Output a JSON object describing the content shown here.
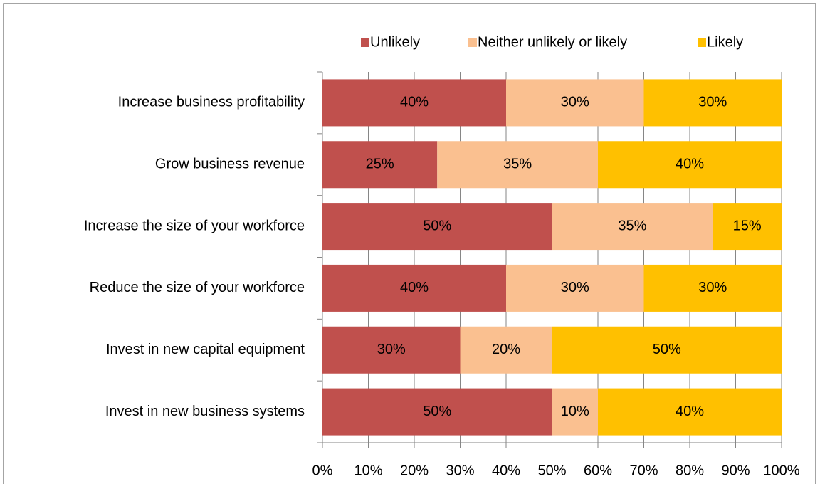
{
  "chart_data": {
    "type": "stacked_barh",
    "categories": [
      "Increase business profitability",
      "Grow business revenue",
      "Increase the size of your workforce",
      "Reduce the size of your workforce",
      "Invest in new capital equipment",
      "Invest in new business systems"
    ],
    "series": [
      {
        "name": "Unlikely",
        "color": "#c0504d",
        "values": [
          40,
          25,
          50,
          40,
          30,
          50
        ],
        "value_labels": [
          "40%",
          "25%",
          "50%",
          "40%",
          "30%",
          "50%"
        ]
      },
      {
        "name": "Neither unlikely or likely",
        "color": "#fac090",
        "values": [
          30,
          35,
          35,
          30,
          20,
          10
        ],
        "value_labels": [
          "30%",
          "35%",
          "35%",
          "30%",
          "20%",
          "10%"
        ]
      },
      {
        "name": "Likely",
        "color": "#ffc000",
        "values": [
          30,
          40,
          15,
          30,
          50,
          40
        ],
        "value_labels": [
          "30%",
          "40%",
          "15%",
          "30%",
          "50%",
          "40%"
        ]
      }
    ],
    "xlim": [
      0,
      100
    ],
    "xticks": [
      {
        "value": 0,
        "label": "0%"
      },
      {
        "value": 10,
        "label": "10%"
      },
      {
        "value": 20,
        "label": "20%"
      },
      {
        "value": 30,
        "label": "30%"
      },
      {
        "value": 40,
        "label": "40%"
      },
      {
        "value": 50,
        "label": "50%"
      },
      {
        "value": 60,
        "label": "60%"
      },
      {
        "value": 70,
        "label": "70%"
      },
      {
        "value": 80,
        "label": "80%"
      },
      {
        "value": 90,
        "label": "90%"
      },
      {
        "value": 100,
        "label": "100%"
      }
    ],
    "grid": true,
    "legend": "top"
  }
}
